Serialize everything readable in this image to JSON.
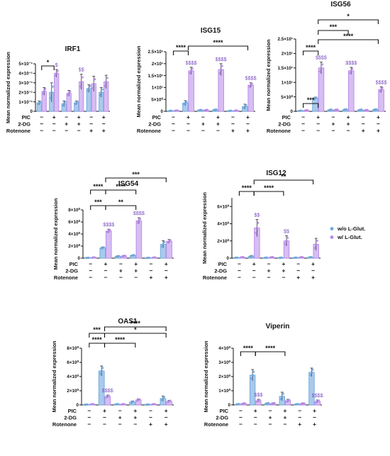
{
  "rows": [
    "PIC",
    "2-DG",
    "Rotenone"
  ],
  "conditions": [
    [
      "−",
      "+",
      "−",
      "+",
      "−",
      "+"
    ],
    [
      "−",
      "−",
      "+",
      "+",
      "−",
      "−"
    ],
    [
      "−",
      "−",
      "−",
      "−",
      "+",
      "+"
    ]
  ],
  "colors": {
    "without": "#6fa8dc",
    "with": "#b688e6",
    "without_fill": "#a9c9ec",
    "with_fill": "#d6bdf3",
    "dollar": "#7a4fbf"
  },
  "legend": [
    {
      "label": "w/o L-Glut.",
      "color": "#6fa8dc"
    },
    {
      "label": "w/ L-Glut.",
      "color": "#b688e6"
    }
  ],
  "chart_data": [
    {
      "id": "irf1",
      "type": "bar",
      "title": "IRF1",
      "ylabel": "Mean normalized expression",
      "ylim": [
        0,
        0.5
      ],
      "ytick_labels": [
        "0",
        "1×10⁻¹",
        "2×10⁻¹",
        "3×10⁻¹",
        "4×10⁻¹",
        "5×10⁻¹"
      ],
      "categories": [
        "1",
        "2",
        "3",
        "4",
        "5",
        "6"
      ],
      "series": [
        {
          "name": "w/o L-Glut.",
          "values": [
            0.09,
            0.2,
            0.08,
            0.09,
            0.24,
            0.2
          ],
          "errors": [
            0.02,
            0.1,
            0.03,
            0.02,
            0.04,
            0.05
          ]
        },
        {
          "name": "w/ L-Glut.",
          "values": [
            0.21,
            0.4,
            0.19,
            0.31,
            0.29,
            0.31
          ],
          "errors": [
            0.04,
            0.04,
            0.03,
            0.08,
            0.08,
            0.07
          ]
        }
      ],
      "significance": [
        {
          "label": "*",
          "from": 0,
          "to": 1,
          "tier": 0
        }
      ],
      "dollar_marks": [
        {
          "category": 1,
          "label": "$"
        },
        {
          "category": 3,
          "label": "$$"
        }
      ]
    },
    {
      "id": "isg15",
      "type": "bar",
      "title": "ISG15",
      "ylabel": "Mean normalized expression",
      "ylim": [
        0,
        25
      ],
      "ytick_labels": [
        "0",
        "5×10⁰",
        "1×10¹",
        "1.5×10¹",
        "2×10¹",
        "2.5×10¹"
      ],
      "categories": [
        "1",
        "2",
        "3",
        "4",
        "5",
        "6"
      ],
      "series": [
        {
          "name": "w/o L-Glut.",
          "values": [
            0.2,
            3.5,
            0.5,
            0.6,
            0.2,
            2
          ],
          "errors": [
            0.1,
            1,
            0.2,
            0.3,
            0.1,
            1
          ]
        },
        {
          "name": "w/ L-Glut.",
          "values": [
            0.3,
            17,
            0.5,
            17.5,
            0.3,
            11
          ],
          "errors": [
            0.1,
            1.5,
            0.2,
            2.5,
            0.1,
            1
          ]
        }
      ],
      "significance": [
        {
          "label": "****",
          "from": 0,
          "to": 1,
          "tier": 0
        },
        {
          "label": "****",
          "from": 1,
          "to": 5,
          "tier": 1
        }
      ],
      "dollar_marks": [
        {
          "category": 1,
          "label": "$$$$"
        },
        {
          "category": 3,
          "label": "$$$$"
        },
        {
          "category": 5,
          "label": "$$$$"
        }
      ]
    },
    {
      "id": "isg56",
      "type": "bar",
      "title": "ISG56",
      "ylabel": "Mean normalized expression",
      "ylim": [
        0,
        25
      ],
      "ytick_labels": [
        "0",
        "5×10⁰",
        "1×10¹",
        "1.5×10¹",
        "2×10¹",
        "2.5×10¹"
      ],
      "categories": [
        "1",
        "2",
        "3",
        "4",
        "5",
        "6"
      ],
      "series": [
        {
          "name": "w/o L-Glut.",
          "values": [
            0.2,
            4.5,
            0.5,
            0.6,
            0.5,
            0.6
          ],
          "errors": [
            0.1,
            0.4,
            0.2,
            0.2,
            0.2,
            0.2
          ]
        },
        {
          "name": "w/ L-Glut.",
          "values": [
            0.3,
            15,
            0.5,
            14,
            0.4,
            7.5
          ],
          "errors": [
            0.1,
            2,
            0.2,
            1.2,
            0.1,
            1
          ]
        }
      ],
      "significance": [
        {
          "label": "***",
          "from": 0,
          "to": 1,
          "tier": 0
        },
        {
          "label": "****",
          "from": 0,
          "to": 1,
          "tier": 1
        },
        {
          "label": "****",
          "from": 1,
          "to": 5,
          "tier": 2
        },
        {
          "label": "***",
          "from": 1,
          "to": 3,
          "tier": 3
        },
        {
          "label": "*",
          "from": 1,
          "to": 5,
          "tier": 4
        }
      ],
      "dollar_marks": [
        {
          "category": 1,
          "label": "$$$$"
        },
        {
          "category": 3,
          "label": "$$$$"
        },
        {
          "category": 5,
          "label": "$$$$"
        }
      ]
    },
    {
      "id": "isg54",
      "type": "bar",
      "title": "ISG54",
      "ylabel": "Mean normalized expression",
      "ylim": [
        0,
        8
      ],
      "ytick_labels": [
        "0",
        "2×10⁰",
        "4×10⁰",
        "6×10⁰",
        "8×10⁰"
      ],
      "categories": [
        "1",
        "2",
        "3",
        "4",
        "5",
        "6"
      ],
      "series": [
        {
          "name": "w/o L-Glut.",
          "values": [
            0.05,
            1.7,
            0.3,
            0.45,
            0.05,
            2.3
          ],
          "errors": [
            0.02,
            0.15,
            0.1,
            0.1,
            0.02,
            0.6
          ]
        },
        {
          "name": "w/ L-Glut.",
          "values": [
            0.1,
            4.5,
            0.35,
            6.2,
            0.1,
            2.8
          ],
          "errors": [
            0.03,
            0.3,
            0.1,
            0.5,
            0.03,
            0.3
          ]
        }
      ],
      "significance": [
        {
          "label": "***",
          "from": 0,
          "to": 1,
          "tier": 0
        },
        {
          "label": "**",
          "from": 1,
          "to": 3,
          "tier": 0
        },
        {
          "label": "****",
          "from": 0,
          "to": 1,
          "tier": 1
        },
        {
          "label": "****",
          "from": 1,
          "to": 3,
          "tier": 1
        },
        {
          "label": "***",
          "from": 1,
          "to": 5,
          "tier": 2
        }
      ],
      "dollar_marks": [
        {
          "category": 1,
          "label": "$$$$"
        },
        {
          "category": 3,
          "label": "$$$$"
        }
      ]
    },
    {
      "id": "isg12",
      "type": "bar",
      "title": "ISG12",
      "ylabel": "Mean normalized expression",
      "ylim": [
        0,
        7
      ],
      "ytick_labels": [
        "0",
        "2×10⁰",
        "4×10⁰",
        "6×10⁰"
      ],
      "ytick_values": [
        0,
        2,
        4,
        6
      ],
      "categories": [
        "1",
        "2",
        "3",
        "4",
        "5",
        "6"
      ],
      "series": [
        {
          "name": "w/o L-Glut.",
          "values": [
            0.05,
            0.2,
            0.05,
            0.05,
            0.05,
            0.1
          ],
          "errors": [
            0.02,
            0.1,
            0.02,
            0.02,
            0.02,
            0.05
          ]
        },
        {
          "name": "w/ L-Glut.",
          "values": [
            0.1,
            3.5,
            0.1,
            2,
            0.1,
            1.6
          ],
          "errors": [
            0.03,
            1,
            0.03,
            0.6,
            0.03,
            0.7
          ]
        }
      ],
      "significance": [
        {
          "label": "****",
          "from": 0,
          "to": 1,
          "tier": 0
        },
        {
          "label": "****",
          "from": 1,
          "to": 3,
          "tier": 0
        },
        {
          "label": "**",
          "from": 1,
          "to": 5,
          "tier": 1
        }
      ],
      "dollar_marks": [
        {
          "category": 1,
          "label": "$$"
        },
        {
          "category": 3,
          "label": "$$"
        }
      ]
    },
    {
      "id": "oas1",
      "type": "bar",
      "title": "OAS1",
      "ylabel": "Mean normalized expression",
      "ylim": [
        0,
        8
      ],
      "ytick_labels": [
        "0",
        "2×10⁰",
        "4×10⁰",
        "6×10⁰",
        "8×10⁰"
      ],
      "categories": [
        "1",
        "2",
        "3",
        "4",
        "5",
        "6"
      ],
      "series": [
        {
          "name": "w/o L-Glut.",
          "values": [
            0.05,
            4.8,
            0.1,
            0.4,
            0.05,
            0.9
          ],
          "errors": [
            0.02,
            0.7,
            0.05,
            0.15,
            0.02,
            0.35
          ]
        },
        {
          "name": "w/ L-Glut.",
          "values": [
            0.1,
            1.2,
            0.1,
            0.7,
            0.1,
            0.5
          ],
          "errors": [
            0.03,
            0.2,
            0.05,
            0.15,
            0.03,
            0.15
          ]
        }
      ],
      "significance": [
        {
          "label": "****",
          "from": 0,
          "to": 1,
          "tier": 0
        },
        {
          "label": "****",
          "from": 1,
          "to": 3,
          "tier": 0
        },
        {
          "label": "***",
          "from": 0,
          "to": 1,
          "tier": 1
        },
        {
          "label": "*",
          "from": 1,
          "to": 5,
          "tier": 1
        },
        {
          "label": "****",
          "from": 1,
          "to": 5,
          "tier": 2
        }
      ],
      "dollar_marks": [
        {
          "category": 1,
          "label": "$$$$"
        }
      ]
    },
    {
      "id": "viperin",
      "type": "bar",
      "title": "Viperin",
      "ylabel": "Mean normalized expression",
      "ylim": [
        0,
        4
      ],
      "ytick_labels": [
        "0",
        "1×10⁰",
        "2×10⁰",
        "3×10⁰",
        "4×10⁰"
      ],
      "categories": [
        "1",
        "2",
        "3",
        "4",
        "5",
        "6"
      ],
      "series": [
        {
          "name": "w/o L-Glut.",
          "values": [
            0.05,
            2.1,
            0.1,
            0.6,
            0.05,
            2.3
          ],
          "errors": [
            0.02,
            0.4,
            0.05,
            0.3,
            0.02,
            0.3
          ]
        },
        {
          "name": "w/ L-Glut.",
          "values": [
            0.1,
            0.3,
            0.1,
            0.3,
            0.1,
            0.25
          ],
          "errors": [
            0.03,
            0.1,
            0.05,
            0.1,
            0.03,
            0.1
          ]
        }
      ],
      "significance": [
        {
          "label": "****",
          "from": 0,
          "to": 1,
          "tier": 0
        },
        {
          "label": "****",
          "from": 1,
          "to": 3,
          "tier": 0
        }
      ],
      "dollar_marks": [
        {
          "category": 1,
          "label": "$$$"
        },
        {
          "category": 5,
          "label": "$$$$"
        }
      ]
    }
  ]
}
